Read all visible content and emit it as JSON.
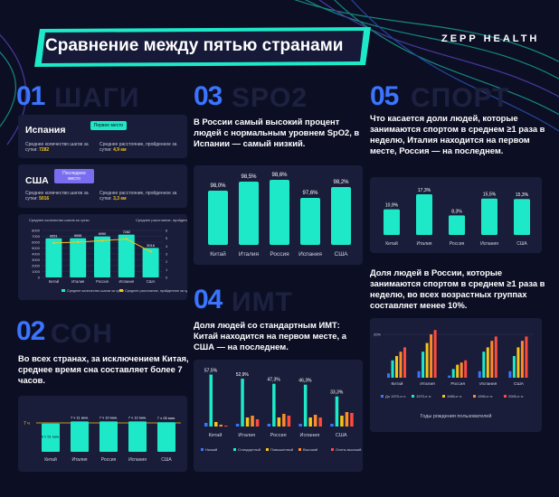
{
  "header": {
    "title": "Сравнение между пятью странами",
    "brand": "ZEPP HEALTH"
  },
  "sections": {
    "s01": {
      "num": "01",
      "ghost": "ШАГИ"
    },
    "s02": {
      "num": "02",
      "ghost": "СОН"
    },
    "s03": {
      "num": "03",
      "ghost": "SPO2"
    },
    "s04": {
      "num": "04",
      "ghost": "ИМТ"
    },
    "s05": {
      "num": "05",
      "ghost": "СПОРТ"
    }
  },
  "steps_cards": {
    "spain": {
      "country": "Испания",
      "tag": "Первое место",
      "steps_label": "Среднее количество шагов за сутки:",
      "steps_value": "7282",
      "dist_label": "Среднее расстояние, пройденное за сутки:",
      "dist_value": "4,9 км"
    },
    "usa": {
      "country": "США",
      "tag": "Последнее место",
      "steps_label": "Среднее количество шагов за сутки:",
      "steps_value": "5016",
      "dist_label": "Среднее расстояние, пройденное за сутки:",
      "dist_value": "3,3 км"
    }
  },
  "text": {
    "sleep": "Во всех странах, за исключением Китая, среднее время сна составляет более 7 часов.",
    "spo2": "В России самый высокий процент людей с нормальным уровнем SpO2, в Испании — самый низкий.",
    "bmi": "Доля людей со стандартным ИМТ: Китай находится на первом месте, а США — на последнем.",
    "sport1": "Что касается доли людей, которые занимаются спортом в среднем ≥1 раза в неделю, Италия находится на первом месте, Россия — на последнем.",
    "sport2": "Доля людей в России, которые занимаются спортом в среднем ≥1 раза в неделю, во всех возрастных группах составляет менее 10%."
  },
  "colors": {
    "teal": "#1de9c8",
    "blue": "#3b74ff",
    "yellow": "#f5c518",
    "orange": "#ff8a2a",
    "red": "#ff4a3d",
    "card": "#1a1d3a",
    "bg": "#0c0f24"
  },
  "chart_data": [
    {
      "id": "steps",
      "type": "bar",
      "categories": [
        "Китай",
        "Италия",
        "Россия",
        "Испания",
        "США"
      ],
      "series": [
        {
          "name": "Среднее количество шагов за сутки",
          "values": [
            6651,
            6666,
            6990,
            7282,
            5016
          ],
          "labels": [
            "6651",
            "6666",
            "6990",
            "7282",
            "5016"
          ]
        },
        {
          "name": "Среднее расстояние, пройденное за сутки",
          "values": [
            4.4,
            4.5,
            4.7,
            4.9,
            3.3
          ]
        }
      ],
      "y_left_label": "Среднее количество шагов за сутки",
      "y_right_label": "Среднее расстояние, пройденное за сутки",
      "y_left_ticks": [
        "8000",
        "7000",
        "6000",
        "5000",
        "4000",
        "3000",
        "2000",
        "1000",
        "0"
      ],
      "y_right_ticks": [
        "6",
        "5",
        "4",
        "3",
        "2",
        "1",
        "0"
      ],
      "y_left_range": [
        0,
        8000
      ],
      "y_right_range": [
        0,
        6
      ]
    },
    {
      "id": "sleep",
      "type": "bar",
      "categories": [
        "Китай",
        "Италия",
        "Россия",
        "Испания",
        "США"
      ],
      "values": [
        6.9,
        7.2,
        7.2,
        7.2,
        7.1
      ],
      "value_labels": [
        "6 ч 51 мин.",
        "7 ч 11 мин.",
        "7 ч 10 мин.",
        "7 ч 12 мин.",
        "7 ч 05 мин."
      ],
      "reference_line": {
        "value": 7,
        "label": "7 ч"
      }
    },
    {
      "id": "spo2",
      "type": "bar",
      "categories": [
        "Китай",
        "Италия",
        "Россия",
        "Испания",
        "США"
      ],
      "values": [
        98.0,
        98.5,
        98.6,
        97.6,
        98.2
      ],
      "value_labels": [
        "98,0%",
        "98,5%",
        "98,6%",
        "97,6%",
        "98,2%"
      ]
    },
    {
      "id": "bmi",
      "type": "bar",
      "categories": [
        "Китай",
        "Италия",
        "Россия",
        "Испания",
        "США"
      ],
      "series": [
        {
          "name": "Низкий",
          "values": [
            4,
            3,
            3,
            3,
            3
          ]
        },
        {
          "name": "Стандартный",
          "values": [
            57.5,
            52.9,
            47.3,
            46.3,
            33.3
          ]
        },
        {
          "name": "Повышенный",
          "values": [
            5,
            10,
            10,
            10,
            12
          ]
        },
        {
          "name": "Высокий",
          "values": [
            2,
            12,
            14,
            13,
            16
          ]
        },
        {
          "name": "Очень высокий",
          "values": [
            1,
            8,
            12,
            10,
            15
          ]
        }
      ],
      "value_labels": [
        "57,5%",
        "52,9%",
        "47,3%",
        "46,3%",
        "33,3%"
      ]
    },
    {
      "id": "sport",
      "type": "bar",
      "categories": [
        "Китай",
        "Италия",
        "Россия",
        "Испания",
        "США"
      ],
      "values": [
        10.9,
        17.3,
        8.3,
        15.5,
        15.3
      ],
      "value_labels": [
        "10,9%",
        "17,3%",
        "8,3%",
        "15,5%",
        "15,3%"
      ]
    },
    {
      "id": "sport_age",
      "type": "bar",
      "categories": [
        "Китай",
        "Италия",
        "Россия",
        "Испания",
        "США"
      ],
      "series": [
        {
          "name": "До 1970-х гг.",
          "values": [
            2,
            3,
            1,
            3,
            3
          ]
        },
        {
          "name": "1970-е гг.",
          "values": [
            8,
            12,
            4,
            12,
            10
          ]
        },
        {
          "name": "1980-е гг.",
          "values": [
            10,
            16,
            6,
            14,
            14
          ]
        },
        {
          "name": "1990-е гг.",
          "values": [
            12,
            20,
            7,
            17,
            17
          ]
        },
        {
          "name": "2000-е гг.",
          "values": [
            14,
            22,
            8,
            19,
            19
          ]
        }
      ],
      "y_tick": "20%",
      "xlabel": "Годы рождения пользователей"
    }
  ]
}
